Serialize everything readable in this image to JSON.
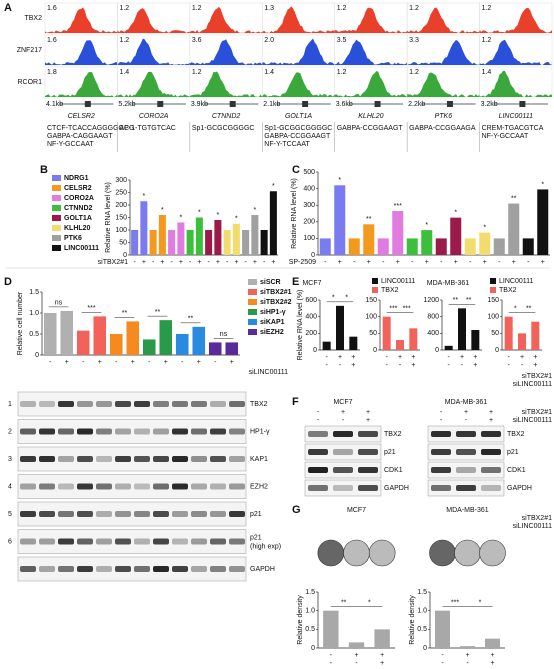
{
  "panel_a": {
    "label": "A",
    "tracks": [
      {
        "name": "TBX2",
        "color": "#e8402a",
        "scales": [
          "1.6",
          "1.2",
          "1.2",
          "1.3",
          "1.2",
          "1.2",
          "1.2"
        ]
      },
      {
        "name": "ZNF217",
        "color": "#2a4fd8",
        "scales": [
          "1.6",
          "1.2",
          "3.6",
          "2.0",
          "3.5",
          "3.3",
          "1.2"
        ]
      },
      {
        "name": "RCOR1",
        "color": "#3aa83a",
        "scales": [
          "1.8",
          "1.4",
          "1.2",
          "1.4",
          "1.2",
          "1.2",
          "1.4"
        ]
      }
    ],
    "genes": [
      {
        "name": "CELSR2",
        "size": "4.1kb",
        "motifs": [
          "CTCF-TCACCAGGGGGCG",
          "GABPA-CAGGAAGT",
          "NF-Y-GCCAAT"
        ]
      },
      {
        "name": "CORO2A",
        "size": "5.2kb",
        "motifs": [
          "AP-1-TGTGTCAC"
        ]
      },
      {
        "name": "CTNND2",
        "size": "3.9kb",
        "motifs": [
          "Sp1-GCGCGGGGC"
        ]
      },
      {
        "name": "GOLT1A",
        "size": "2.1kb",
        "motifs": [
          "Sp1-GCGGCGGGGC",
          "GABPA-CCGGAAGT",
          "NF-Y-TCCAAT"
        ]
      },
      {
        "name": "KLHL20",
        "size": "3.6kb",
        "motifs": [
          "GABPA-CCGGAAGT"
        ]
      },
      {
        "name": "PTK6",
        "size": "2.2kb",
        "motifs": [
          "GABPA-CCGGAAGA"
        ]
      },
      {
        "name": "LINC00111",
        "size": "3.2kb",
        "motifs": [
          "CREM-TGACGTCA",
          "NF-Y-GCCAAT"
        ]
      }
    ]
  },
  "chart_data": [
    {
      "type": "bar",
      "panel": "B",
      "ylabel": "Relative RNA level (%)",
      "xlabel": "siTBX2#1",
      "categories": [
        "-",
        "+"
      ],
      "ylim": [
        0,
        300
      ],
      "yticks": [
        0,
        50,
        100,
        150,
        200,
        250,
        300
      ],
      "series": [
        {
          "name": "NDRG1",
          "color": "#7b7bf0",
          "values": [
            100,
            215
          ],
          "sig": "*"
        },
        {
          "name": "CELSR2",
          "color": "#f39a1e",
          "values": [
            100,
            160
          ],
          "sig": "*"
        },
        {
          "name": "CORO2A",
          "color": "#e07be0",
          "values": [
            100,
            130
          ],
          "sig": "*"
        },
        {
          "name": "CTNND2",
          "color": "#3cc03c",
          "values": [
            100,
            150
          ],
          "sig": "*"
        },
        {
          "name": "GOLT1A",
          "color": "#9b1a4a",
          "values": [
            100,
            140
          ],
          "sig": "*"
        },
        {
          "name": "KLHL20",
          "color": "#f2dc6e",
          "values": [
            100,
            125
          ],
          "sig": "*"
        },
        {
          "name": "PTK6",
          "color": "#a0a0a0",
          "values": [
            100,
            160
          ],
          "sig": "*"
        },
        {
          "name": "LINC00111",
          "color": "#111111",
          "values": [
            100,
            255
          ],
          "sig": "*"
        }
      ]
    },
    {
      "type": "bar",
      "panel": "C",
      "ylabel": "Relative RNA level (%)",
      "xlabel": "SP-2509",
      "categories": [
        "-",
        "+"
      ],
      "ylim": [
        0,
        500
      ],
      "yticks": [
        0,
        100,
        200,
        300,
        400,
        500
      ],
      "series": [
        {
          "color": "#7b7bf0",
          "values": [
            100,
            420
          ],
          "sig": "*"
        },
        {
          "color": "#f39a1e",
          "values": [
            100,
            185
          ],
          "sig": "**"
        },
        {
          "color": "#e07be0",
          "values": [
            100,
            265
          ],
          "sig": "***"
        },
        {
          "color": "#3cc03c",
          "values": [
            100,
            150
          ],
          "sig": "*"
        },
        {
          "color": "#9b1a4a",
          "values": [
            100,
            225
          ],
          "sig": "*"
        },
        {
          "color": "#f2dc6e",
          "values": [
            100,
            135
          ],
          "sig": "*"
        },
        {
          "color": "#a0a0a0",
          "values": [
            100,
            310
          ],
          "sig": "**"
        },
        {
          "color": "#111111",
          "values": [
            100,
            395
          ],
          "sig": "*"
        }
      ]
    },
    {
      "type": "bar",
      "panel": "D",
      "ylabel": "Relative cell number",
      "xlabel": "siLINC00111",
      "categories": [
        "-",
        "+"
      ],
      "ylim": [
        0,
        1.5
      ],
      "yticks": [
        0,
        0.5,
        {
          "value": 1,
          "label": "1.0"
        },
        1.5
      ],
      "series": [
        {
          "name": "siSCR",
          "color": "#b0b0b0",
          "values": [
            1.0,
            1.05
          ],
          "sig": "ns"
        },
        {
          "name": "siTBX2#1",
          "color": "#f0625a",
          "values": [
            0.58,
            0.92
          ],
          "sig": "***"
        },
        {
          "name": "siTBX2#2",
          "color": "#f58a1f",
          "values": [
            0.5,
            0.8
          ],
          "sig": "**"
        },
        {
          "name": "siHP1-γ",
          "color": "#2a9a4a",
          "values": [
            0.37,
            0.83
          ],
          "sig": "**"
        },
        {
          "name": "siKAP1",
          "color": "#2a8ae0",
          "values": [
            0.5,
            0.67
          ],
          "sig": "**"
        },
        {
          "name": "siEZH2",
          "color": "#5a2a9a",
          "values": [
            0.3,
            0.3
          ],
          "sig": "ns"
        }
      ]
    },
    {
      "type": "bar",
      "panel": "E",
      "title": "MCF7",
      "ylabel": "Relative RNA level (%)",
      "name": "LINC00111",
      "color": "#111111",
      "values": [
        100,
        530,
        160
      ],
      "ylim": [
        0,
        600
      ],
      "yticks": [
        0,
        200,
        400,
        600
      ],
      "sig": [
        "*",
        "*"
      ],
      "signs": [
        [
          "-",
          "+",
          "+"
        ],
        [
          "-",
          "-",
          "+"
        ]
      ]
    },
    {
      "type": "bar",
      "name": "TBX2",
      "color": "#f0625a",
      "values": [
        100,
        30,
        65
      ],
      "ylim": [
        0,
        150
      ],
      "yticks": [
        0,
        50,
        100,
        150
      ],
      "sig": [
        "***",
        "***"
      ],
      "signs": [
        [
          "-",
          "+",
          "+"
        ],
        [
          "-",
          "-",
          "+"
        ]
      ]
    },
    {
      "type": "bar",
      "title": "MDA-MB-361",
      "name": "LINC00111",
      "color": "#111111",
      "values": [
        100,
        1000,
        480
      ],
      "ylim": [
        0,
        1200
      ],
      "yticks": [
        0,
        400,
        800,
        1200
      ],
      "sig": [
        "**",
        "**"
      ],
      "signs": [
        [
          "-",
          "+",
          "+"
        ],
        [
          "-",
          "-",
          "+"
        ]
      ]
    },
    {
      "type": "bar",
      "name": "TBX2",
      "color": "#f0625a",
      "values": [
        100,
        50,
        85
      ],
      "ylim": [
        0,
        150
      ],
      "yticks": [
        0,
        50,
        100,
        150
      ],
      "sig": [
        "*",
        "**"
      ],
      "signs": [
        [
          "-",
          "+",
          "+"
        ],
        [
          "-",
          "-",
          "+"
        ]
      ]
    },
    {
      "type": "bar",
      "panel": "G",
      "title": "MCF7",
      "ylabel": "Relative density",
      "color": "#a8a8a8",
      "values": [
        1.0,
        0.15,
        0.5
      ],
      "ylim": [
        0,
        1.5
      ],
      "yticks": [
        0,
        0.5,
        {
          "value": 1,
          "label": "1.0"
        },
        1.5
      ],
      "sig": [
        "**",
        "*"
      ],
      "signs": [
        [
          "-",
          "+",
          "+"
        ],
        [
          "-",
          "-",
          "+"
        ]
      ]
    },
    {
      "type": "bar",
      "title": "MDA-MB-361",
      "ylabel": "Relative density",
      "color": "#a8a8a8",
      "values": [
        1.0,
        0.05,
        0.25
      ],
      "ylim": [
        0,
        1.5
      ],
      "yticks": [
        0,
        0.5,
        {
          "value": 1,
          "label": "1.0"
        },
        1.5
      ],
      "sig": [
        "***",
        "*"
      ],
      "signs": [
        [
          "-",
          "+",
          "+"
        ],
        [
          "-",
          "-",
          "+"
        ]
      ]
    }
  ],
  "e_row_labels": [
    "siTBX2#1",
    "siLINC00111"
  ],
  "blots_d": {
    "rows": [
      {
        "num": "1",
        "label": "TBX2"
      },
      {
        "num": "2",
        "label": "HP1-γ"
      },
      {
        "num": "3",
        "label": "KAP1"
      },
      {
        "num": "4",
        "label": "EZH2"
      },
      {
        "num": "5",
        "label": "p21"
      },
      {
        "num": "6",
        "label": "p21\n(high exp)"
      },
      {
        "num": "",
        "label": "GAPDH"
      }
    ]
  },
  "blots_f": {
    "panel": "F",
    "row_labels": [
      "siTBX2#1",
      "siLINC00111"
    ],
    "sides": [
      {
        "title": "MCF7",
        "signs": [
          [
            "-",
            "+",
            "+"
          ],
          [
            "-",
            "-",
            "+"
          ]
        ],
        "labels": [
          "TBX2",
          "p21",
          "CDK1",
          "GAPDH"
        ]
      },
      {
        "title": "MDA-MB-361",
        "signs": [
          [
            "-",
            "+",
            "+"
          ],
          [
            "-",
            "-",
            "+"
          ]
        ],
        "labels": [
          "TBX2",
          "p21",
          "CDK1",
          "GAPDH"
        ]
      }
    ]
  },
  "g_row_labels": [
    "siTBX2#1",
    "siLINC00111"
  ]
}
